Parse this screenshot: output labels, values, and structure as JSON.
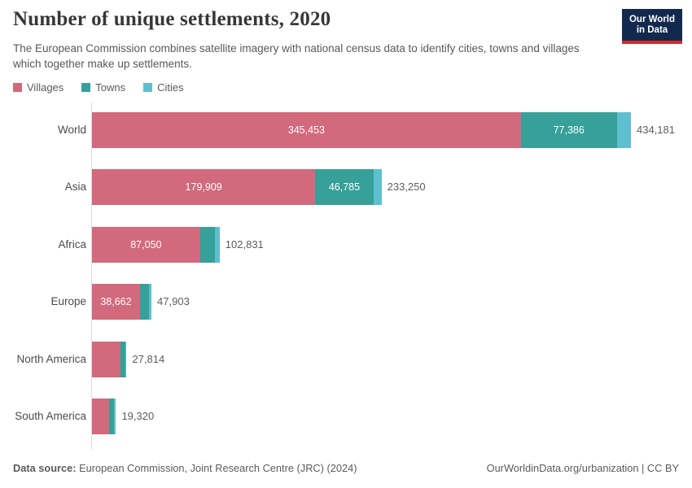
{
  "header": {
    "title": "Number of unique settlements, 2020",
    "subtitle": "The European Commission combines satellite imagery with national census data to identify cities, towns and villages which together make up settlements.",
    "logo": {
      "line1": "Our World",
      "line2": "in Data",
      "bg": "#12294d",
      "accent": "#c9302e"
    }
  },
  "chart_data": {
    "type": "bar",
    "orientation": "horizontal",
    "stacked": true,
    "title": "Number of unique settlements, 2020",
    "categories": [
      "World",
      "Asia",
      "Africa",
      "Europe",
      "North America",
      "South America"
    ],
    "series": [
      {
        "name": "Villages",
        "color": "#d2697c",
        "values": [
          345453,
          179909,
          87050,
          38662,
          22800,
          13900
        ],
        "value_labels": [
          "345,453",
          "179,909",
          "87,050",
          "38,662",
          "",
          ""
        ]
      },
      {
        "name": "Towns",
        "color": "#36a099",
        "values": [
          77386,
          46785,
          12100,
          7500,
          4000,
          4000
        ],
        "value_labels": [
          "77,386",
          "46,785",
          "",
          "",
          "",
          ""
        ]
      },
      {
        "name": "Cities",
        "color": "#5ebfd0",
        "values": [
          11342,
          6556,
          3681,
          1741,
          1014,
          1420
        ],
        "value_labels": [
          "",
          "",
          "",
          "",
          "",
          ""
        ]
      }
    ],
    "totals": [
      434181,
      233250,
      102831,
      47903,
      27814,
      19320
    ],
    "total_labels": [
      "434,181",
      "233,250",
      "102,831",
      "47,903",
      "27,814",
      "19,320"
    ],
    "xmax": 434181,
    "grid": false,
    "legend_position": "top-left"
  },
  "footer": {
    "source_label": "Data source:",
    "source_text": "European Commission, Joint Research Centre (JRC) (2024)",
    "right_text": "OurWorldinData.org/urbanization | CC BY"
  }
}
